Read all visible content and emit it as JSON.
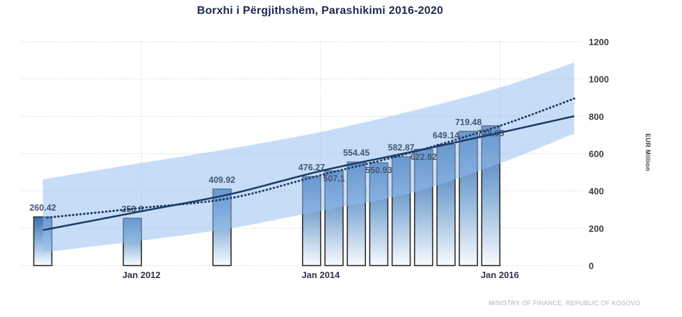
{
  "chart_data": {
    "type": "bar",
    "title": "Borxhi i Përgjithshëm, Parashikimi 2016-2020",
    "ylabel": "EUR Million",
    "source": "MINISTRY OF FINANCE, REPUBLIC OF KOSOVO",
    "ylim": [
      0,
      1200
    ],
    "yticks": [
      0,
      200,
      400,
      600,
      800,
      1000,
      1200
    ],
    "x_unit": "years since Jan 2011",
    "xticks": [
      {
        "t": 1,
        "label": "Jan 2012"
      },
      {
        "t": 3,
        "label": "Jan 2014"
      },
      {
        "t": 5,
        "label": "Jan 2016"
      }
    ],
    "bars": [
      {
        "t": 0.0,
        "value": 260.42,
        "label": "260.42",
        "label_pos": "above"
      },
      {
        "t": 1.0,
        "value": 253.6,
        "label": "253.6",
        "label_pos": "above"
      },
      {
        "t": 2.0,
        "value": 409.92,
        "label": "409.92",
        "label_pos": "above"
      },
      {
        "t": 3.0,
        "value": 476.27,
        "label": "476.27",
        "label_pos": "above"
      },
      {
        "t": 3.25,
        "value": 507.1,
        "label": "507.1",
        "label_pos": "inside"
      },
      {
        "t": 3.5,
        "value": 554.45,
        "label": "554.45",
        "label_pos": "above"
      },
      {
        "t": 3.75,
        "value": 550.93,
        "label": "550.93",
        "label_pos": "inside"
      },
      {
        "t": 4.0,
        "value": 582.87,
        "label": "582.87",
        "label_pos": "above"
      },
      {
        "t": 4.25,
        "value": 622.82,
        "label": "622.82",
        "label_pos": "inside"
      },
      {
        "t": 4.5,
        "value": 649.14,
        "label": "649.14",
        "label_pos": "above"
      },
      {
        "t": 4.75,
        "value": 719.48,
        "label": "719.48",
        "label_pos": "above"
      },
      {
        "t": 5.0,
        "value": 748.95,
        "label": "748.95",
        "label_pos": "inside"
      }
    ],
    "trend_line": {
      "style": "solid",
      "t": [
        -0.1,
        1,
        2,
        3,
        4,
        5,
        5.83
      ],
      "values": [
        190,
        291,
        384,
        507,
        608,
        712,
        801
      ]
    },
    "forecast_line": {
      "style": "dotted",
      "t": [
        -0.05,
        1,
        2,
        3,
        4,
        5,
        5.83
      ],
      "values": [
        257,
        309,
        362,
        485,
        604,
        749,
        895
      ]
    },
    "confidence_band": {
      "t": [
        -0.1,
        1,
        2,
        3,
        4,
        5,
        5.83
      ],
      "upper": [
        462,
        550,
        628,
        716,
        827,
        954,
        1088
      ],
      "lower": [
        71,
        134,
        200,
        294,
        388,
        548,
        708
      ]
    },
    "colors": {
      "bar_gradient_top": "#3a6fae",
      "bar_gradient_mid": "#8fb4da",
      "bar_gradient_bottom": "#f8fbfe",
      "bar_border": "#2b2b2b",
      "band": "#93bef0",
      "band_opacity": 0.52,
      "line": "#1d3a66",
      "grid": "#cbcbcb",
      "title_text": "#1d2951",
      "value_label_text": "#48566f",
      "source_text": "#a9b1bd"
    }
  }
}
